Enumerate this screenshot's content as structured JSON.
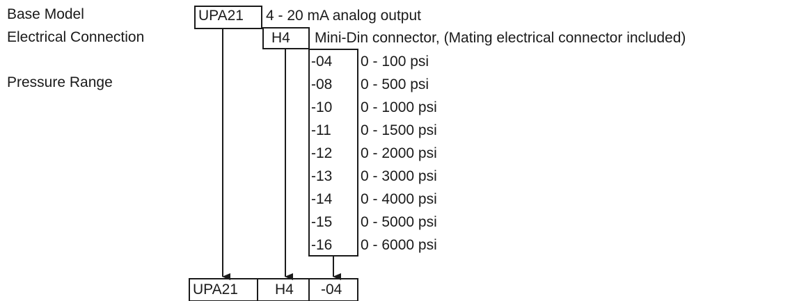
{
  "labels": {
    "base_model": "Base Model",
    "electrical_connection": "Electrical Connection",
    "pressure_range": "Pressure Range"
  },
  "base_model": {
    "code": "UPA21",
    "description": "4 - 20 mA analog output"
  },
  "electrical_connection": {
    "code": "H4",
    "description": "Mini-Din connector, (Mating electrical connector included)"
  },
  "pressure_ranges": [
    {
      "code": "-04",
      "range": "0 - 100 psi"
    },
    {
      "code": "-08",
      "range": "0 - 500 psi"
    },
    {
      "code": "-10",
      "range": "0 - 1000 psi"
    },
    {
      "code": "-11",
      "range": "0 - 1500 psi"
    },
    {
      "code": "-12",
      "range": "0 - 2000 psi"
    },
    {
      "code": "-13",
      "range": "0 - 3000 psi"
    },
    {
      "code": "-14",
      "range": "0 - 4000 psi"
    },
    {
      "code": "-15",
      "range": "0 - 5000 psi"
    },
    {
      "code": "-16",
      "range": "0 - 6000 psi"
    }
  ],
  "example_part_number": [
    "UPA21",
    "H4",
    "-04"
  ],
  "colors": {
    "line": "#1a1a1a",
    "text": "#1a1a1a"
  }
}
